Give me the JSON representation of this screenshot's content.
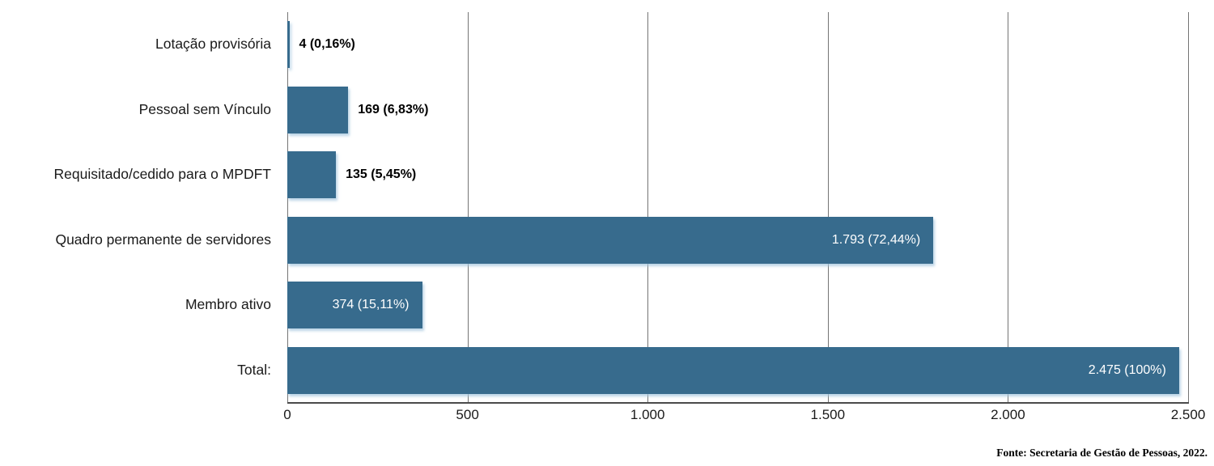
{
  "chart_data": {
    "type": "bar",
    "orientation": "horizontal",
    "categories": [
      "Lotação provisória",
      "Pessoal sem Vínculo",
      "Requisitado/cedido para o MPDFT",
      "Quadro permanente de servidores",
      "Membro ativo",
      "Total:"
    ],
    "values": [
      4,
      169,
      135,
      1793,
      374,
      2475
    ],
    "value_labels": [
      "4 (0,16%)",
      "169 (6,83%)",
      "135 (5,45%)",
      "1.793 (72,44%)",
      "374 (15,11%)",
      "2.475 (100%)"
    ],
    "label_inside": [
      false,
      false,
      false,
      true,
      true,
      true
    ],
    "xlim": [
      0,
      2500
    ],
    "x_ticks": [
      0,
      500,
      1000,
      1500,
      2000,
      2500
    ],
    "x_tick_labels": [
      "0",
      "500",
      "1.000",
      "1.500",
      "2.000",
      "2.500"
    ],
    "bar_color": "#376B8D",
    "grid": true,
    "legend": "none",
    "title": ""
  },
  "footer": {
    "source": "Fonte: Secretaria de Gestão de Pessoas, 2022."
  }
}
